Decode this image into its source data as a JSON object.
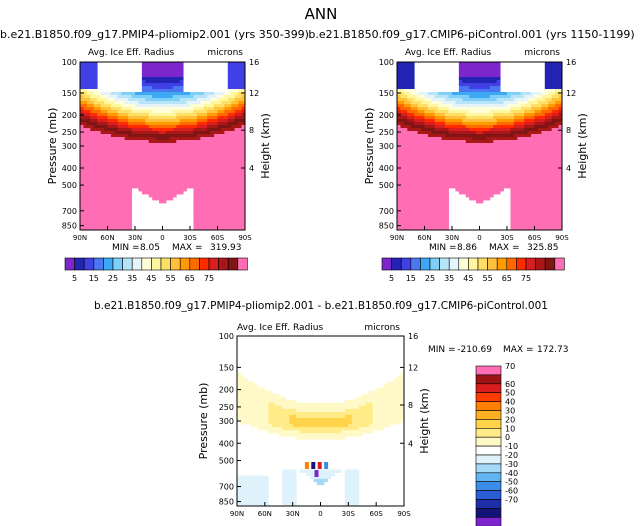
{
  "page_title": "ANN",
  "colors": {
    "abs_scale": [
      "#7d26cd",
      "#2323b4",
      "#4040e6",
      "#4a77f0",
      "#3ea8f5",
      "#7fd0f7",
      "#b7e4f7",
      "#e5f4fa",
      "#ffffd8",
      "#fff7a0",
      "#ffe066",
      "#ffc03a",
      "#ff9a00",
      "#ff6a00",
      "#ff2a00",
      "#d81e1e",
      "#aa1717",
      "#7f1515",
      "#ff6eb4"
    ],
    "diff_scale": [
      "#7d26cd",
      "#141478",
      "#1e2ea8",
      "#2a5cd6",
      "#3a8ee8",
      "#62b4f3",
      "#a6d8f8",
      "#def2fb",
      "#ffffff",
      "#fff9c8",
      "#ffec88",
      "#ffd44a",
      "#ffb020",
      "#ff7f00",
      "#ff3c00",
      "#d81e1e",
      "#9e1414",
      "#ff6eb4"
    ]
  },
  "chart_data": [
    {
      "type": "heatmap",
      "id": "panel_pliomip",
      "title": "b.e21.B1850.f09_g17.PMIP4-pliomip2.001 (yrs 350-399)",
      "subtitle_left": "Avg. Ice Eff. Radius",
      "subtitle_right": "microns",
      "ylabel": "Pressure (mb)",
      "ylabel_right": "Height (km)",
      "x_ticks": [
        "90N",
        "60N",
        "30N",
        "0",
        "30S",
        "60S",
        "90S"
      ],
      "y_ticks": [
        "100",
        "150",
        "200",
        "250",
        "300",
        "400",
        "500",
        "700",
        "850"
      ],
      "y_ticks_right": [
        "16",
        "12",
        "8",
        "4"
      ],
      "stats": {
        "min_label": "MIN =",
        "min": "8.05",
        "max_label": "MAX =",
        "max": "319.93"
      },
      "colorbar_labels": [
        "5",
        "15",
        "25",
        "35",
        "45",
        "55",
        "65",
        "75"
      ]
    },
    {
      "type": "heatmap",
      "id": "panel_picontrol",
      "title": "b.e21.B1850.f09_g17.CMIP6-piControl.001 (yrs 1150-1199)",
      "subtitle_left": "Avg. Ice Eff. Radius",
      "subtitle_right": "microns",
      "ylabel": "Pressure (mb)",
      "ylabel_right": "Height (km)",
      "x_ticks": [
        "90N",
        "60N",
        "30N",
        "0",
        "30S",
        "60S",
        "90S"
      ],
      "y_ticks": [
        "100",
        "150",
        "200",
        "250",
        "300",
        "400",
        "500",
        "700",
        "850"
      ],
      "y_ticks_right": [
        "16",
        "12",
        "8",
        "4"
      ],
      "stats": {
        "min_label": "MIN =",
        "min": "8.86",
        "max_label": "MAX =",
        "max": "325.85"
      },
      "colorbar_labels": [
        "5",
        "15",
        "25",
        "35",
        "45",
        "55",
        "65",
        "75"
      ]
    },
    {
      "type": "heatmap",
      "id": "panel_difference",
      "title": "b.e21.B1850.f09_g17.PMIP4-pliomip2.001 - b.e21.B1850.f09_g17.CMIP6-piControl.001",
      "subtitle_left": "Avg. Ice Eff. Radius",
      "subtitle_right": "microns",
      "ylabel": "Pressure (mb)",
      "ylabel_right": "Height (km)",
      "x_ticks": [
        "90N",
        "60N",
        "30N",
        "0",
        "30S",
        "60S",
        "90S"
      ],
      "y_ticks": [
        "100",
        "150",
        "200",
        "250",
        "300",
        "400",
        "500",
        "700",
        "850"
      ],
      "y_ticks_right": [
        "16",
        "12",
        "8",
        "4"
      ],
      "stats": {
        "min_label": "MIN =",
        "min": "-210.69",
        "max_label": "MAX =",
        "max": "172.73"
      },
      "colorbar_labels": [
        "70",
        "60",
        "50",
        "40",
        "30",
        "20",
        "10",
        "0",
        "-10",
        "-20",
        "-30",
        "-40",
        "-50",
        "-60",
        "-70"
      ]
    }
  ]
}
